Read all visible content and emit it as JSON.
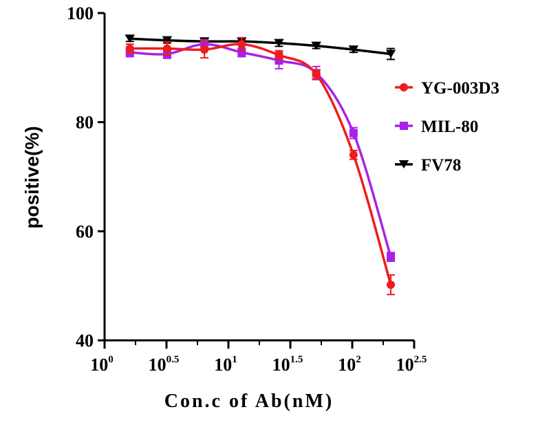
{
  "chart_data": {
    "type": "line",
    "xscale": "log10",
    "xlabel": "Con.c of Ab(nM)",
    "ylabel": "positive(%)",
    "xlim": [
      1,
      316.23
    ],
    "ylim": [
      40,
      100
    ],
    "x_ticks": [
      {
        "base": "10",
        "exp": "0",
        "value": 1
      },
      {
        "base": "10",
        "exp": "0.5",
        "value": 3.162
      },
      {
        "base": "10",
        "exp": "1",
        "value": 10
      },
      {
        "base": "10",
        "exp": "1.5",
        "value": 31.62
      },
      {
        "base": "10",
        "exp": "2",
        "value": 100
      },
      {
        "base": "10",
        "exp": "2.5",
        "value": 316.23
      }
    ],
    "y_ticks": [
      "40",
      "60",
      "80",
      "100"
    ],
    "grid": false,
    "legend_position": "right",
    "series": [
      {
        "name": "YG-003D3",
        "color": "#ee1c1c",
        "marker": "circle",
        "points": [
          {
            "x": 1.6,
            "y": 93.5,
            "err": 0.8
          },
          {
            "x": 3.2,
            "y": 93.5,
            "err": 1.2
          },
          {
            "x": 6.4,
            "y": 93.3,
            "err": 1.5
          },
          {
            "x": 12.8,
            "y": 94.3,
            "err": 1.2
          },
          {
            "x": 25.6,
            "y": 92.3,
            "err": 0.8
          },
          {
            "x": 51.2,
            "y": 88.8,
            "err": 0.8
          },
          {
            "x": 102.4,
            "y": 74.0,
            "err": 0.8
          },
          {
            "x": 204.8,
            "y": 50.2,
            "err": 1.8
          }
        ]
      },
      {
        "name": "MIL-80",
        "color": "#a822e6",
        "marker": "square",
        "points": [
          {
            "x": 1.6,
            "y": 92.8,
            "err": 0.8
          },
          {
            "x": 3.2,
            "y": 92.5,
            "err": 0.8
          },
          {
            "x": 6.4,
            "y": 94.3,
            "err": 0.8
          },
          {
            "x": 12.8,
            "y": 92.8,
            "err": 0.8
          },
          {
            "x": 25.6,
            "y": 91.3,
            "err": 1.5
          },
          {
            "x": 51.2,
            "y": 89.0,
            "err": 1.2
          },
          {
            "x": 102.4,
            "y": 78.0,
            "err": 1.0
          },
          {
            "x": 204.8,
            "y": 55.3,
            "err": 0.8
          }
        ]
      },
      {
        "name": "FV78",
        "color": "#000000",
        "marker": "triangle-down",
        "points": [
          {
            "x": 1.6,
            "y": 95.3,
            "err": 0.5
          },
          {
            "x": 3.2,
            "y": 95.0,
            "err": 0.5
          },
          {
            "x": 6.4,
            "y": 94.8,
            "err": 0.5
          },
          {
            "x": 12.8,
            "y": 94.8,
            "err": 0.5
          },
          {
            "x": 25.6,
            "y": 94.5,
            "err": 0.6
          },
          {
            "x": 51.2,
            "y": 94.0,
            "err": 0.5
          },
          {
            "x": 102.4,
            "y": 93.3,
            "err": 0.5
          },
          {
            "x": 204.8,
            "y": 92.5,
            "err": 1.0
          }
        ]
      }
    ]
  }
}
